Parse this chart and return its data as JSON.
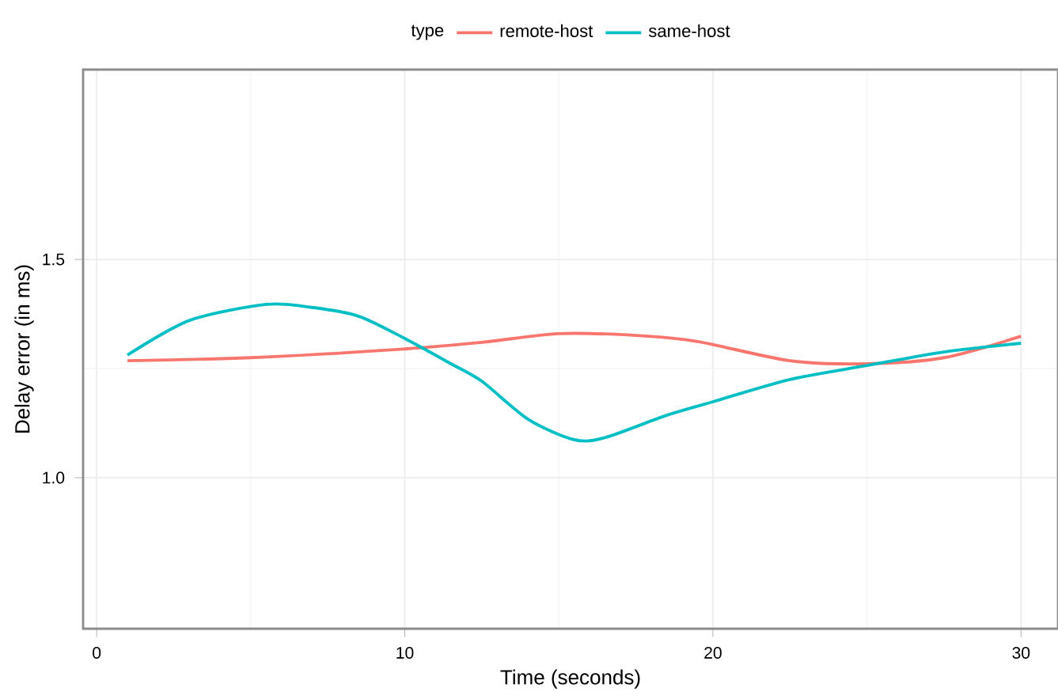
{
  "chart_data": {
    "type": "line",
    "xlabel": "Time (seconds)",
    "ylabel": "Delay error (in ms)",
    "legend_title": "type",
    "legend": "top",
    "grid": true,
    "xlim": [
      -0.44,
      31.2
    ],
    "ylim": [
      0.654,
      1.935
    ],
    "xticks": [
      0,
      10,
      20,
      30
    ],
    "yticks": [
      {
        "value": 1.0,
        "label": "1.0"
      },
      {
        "value": 1.5,
        "label": "1.5"
      }
    ],
    "series": [
      {
        "name": "remote-host",
        "color": "#f8766d",
        "x": [
          1,
          5,
          10,
          12.5,
          15,
          17.5,
          19.5,
          22.5,
          25,
          27.5,
          30
        ],
        "values": [
          1.268,
          1.275,
          1.295,
          1.31,
          1.33,
          1.326,
          1.312,
          1.268,
          1.261,
          1.275,
          1.324
        ]
      },
      {
        "name": "same-host",
        "color": "#00bfc4",
        "x": [
          1,
          3,
          5.5,
          7,
          8.5,
          10,
          11.5,
          12.5,
          14,
          15.5,
          16.5,
          18.5,
          20,
          22.5,
          25,
          27.5,
          30
        ],
        "values": [
          1.281,
          1.36,
          1.397,
          1.39,
          1.37,
          1.319,
          1.261,
          1.221,
          1.134,
          1.087,
          1.092,
          1.143,
          1.174,
          1.225,
          1.257,
          1.288,
          1.308
        ]
      }
    ]
  }
}
